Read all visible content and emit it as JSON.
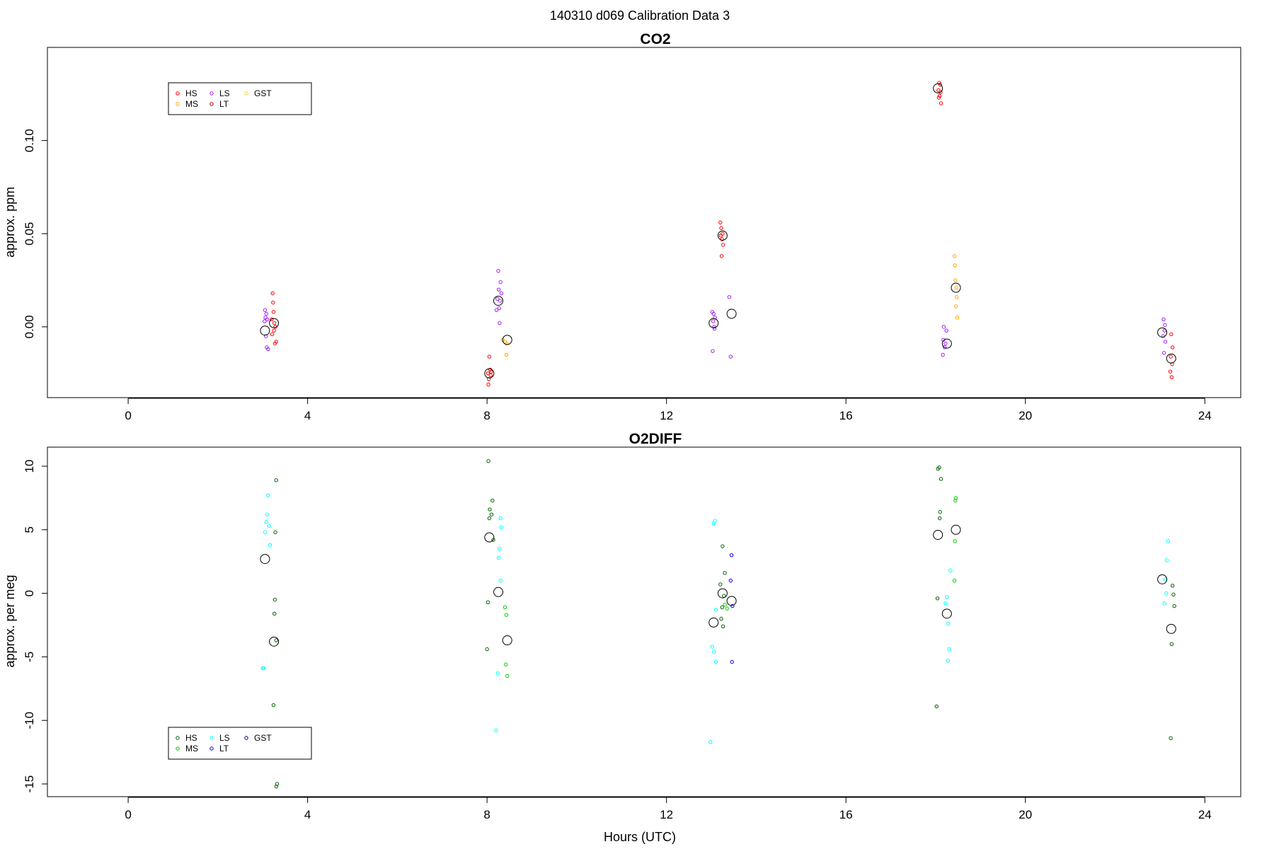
{
  "figure": {
    "title": "140310   d069   Calibration Data 3"
  },
  "chart_data": [
    {
      "type": "scatter",
      "title": "CO2",
      "xlabel": "",
      "ylabel": "approx. ppm",
      "xlim": [
        -1.8,
        24.8
      ],
      "ylim": [
        -0.038,
        0.15
      ],
      "xticks": [
        0,
        4,
        8,
        12,
        16,
        20,
        24
      ],
      "yticks": [
        0.0,
        0.05,
        0.1
      ],
      "ytick_labels": [
        "0.00",
        "0.05",
        "0.10"
      ],
      "legend": {
        "placement": "top-left",
        "entries": [
          {
            "name": "HS",
            "color": "#ff0000"
          },
          {
            "name": "MS",
            "color": "#ffa500"
          },
          {
            "name": "LS",
            "color": "#a020f0"
          },
          {
            "name": "LT",
            "color": "#cd0000"
          },
          {
            "name": "GST",
            "color": "#ffd700"
          }
        ]
      },
      "series": [
        {
          "name": "HS",
          "color": "#ff0000",
          "points": [
            [
              3.22,
              0.018
            ],
            [
              3.23,
              0.013
            ],
            [
              3.24,
              0.008
            ],
            [
              3.2,
              0.004
            ],
            [
              3.26,
              0.002
            ],
            [
              3.28,
              0.0
            ],
            [
              3.25,
              -0.002
            ],
            [
              3.21,
              -0.004
            ],
            [
              3.3,
              -0.008
            ],
            [
              3.27,
              -0.009
            ],
            [
              8.05,
              -0.016
            ],
            [
              8.07,
              -0.023
            ],
            [
              8.09,
              -0.024
            ],
            [
              8.02,
              -0.025
            ],
            [
              8.08,
              -0.026
            ],
            [
              8.04,
              -0.028
            ],
            [
              8.03,
              -0.031
            ],
            [
              13.2,
              0.056
            ],
            [
              13.22,
              0.053
            ],
            [
              13.25,
              0.05
            ],
            [
              13.21,
              0.049
            ],
            [
              13.24,
              0.047
            ],
            [
              13.26,
              0.044
            ],
            [
              13.23,
              0.038
            ],
            [
              18.08,
              0.131
            ],
            [
              18.1,
              0.13
            ],
            [
              18.06,
              0.127
            ],
            [
              18.11,
              0.126
            ],
            [
              18.09,
              0.124
            ],
            [
              18.07,
              0.123
            ],
            [
              18.12,
              0.12
            ],
            [
              23.25,
              -0.004
            ],
            [
              23.28,
              -0.011
            ],
            [
              23.24,
              -0.016
            ],
            [
              23.27,
              -0.02
            ],
            [
              23.23,
              -0.024
            ],
            [
              23.26,
              -0.027
            ]
          ]
        },
        {
          "name": "MS",
          "color": "#ffa500",
          "points": [
            [
              8.35,
              -0.007
            ],
            [
              8.4,
              -0.008
            ],
            [
              8.44,
              -0.009
            ],
            [
              8.43,
              -0.015
            ],
            [
              18.42,
              0.038
            ],
            [
              18.43,
              0.033
            ],
            [
              18.44,
              0.025
            ],
            [
              18.46,
              0.021
            ],
            [
              18.47,
              0.016
            ],
            [
              18.45,
              0.011
            ],
            [
              18.48,
              0.005
            ]
          ]
        },
        {
          "name": "LS",
          "color": "#a020f0",
          "points": [
            [
              3.05,
              0.009
            ],
            [
              3.08,
              0.007
            ],
            [
              3.06,
              0.005
            ],
            [
              3.1,
              0.004
            ],
            [
              3.04,
              0.003
            ],
            [
              3.07,
              -0.005
            ],
            [
              3.09,
              -0.011
            ],
            [
              3.12,
              -0.012
            ],
            [
              8.25,
              0.03
            ],
            [
              8.3,
              0.024
            ],
            [
              8.26,
              0.02
            ],
            [
              8.32,
              0.018
            ],
            [
              8.23,
              0.015
            ],
            [
              8.29,
              0.014
            ],
            [
              8.27,
              0.01
            ],
            [
              8.21,
              0.009
            ],
            [
              8.28,
              0.002
            ],
            [
              13.02,
              0.008
            ],
            [
              13.05,
              0.007
            ],
            [
              13.08,
              0.005
            ],
            [
              13.04,
              0.003
            ],
            [
              13.06,
              0.0
            ],
            [
              13.07,
              -0.001
            ],
            [
              13.03,
              -0.013
            ],
            [
              13.4,
              0.016
            ],
            [
              13.43,
              -0.016
            ],
            [
              18.18,
              0.0
            ],
            [
              18.24,
              -0.002
            ],
            [
              18.17,
              -0.007
            ],
            [
              18.22,
              -0.009
            ],
            [
              18.2,
              -0.011
            ],
            [
              18.16,
              -0.015
            ],
            [
              23.08,
              0.004
            ],
            [
              23.11,
              0.001
            ],
            [
              23.1,
              -0.002
            ],
            [
              23.07,
              -0.005
            ],
            [
              23.12,
              -0.008
            ],
            [
              23.09,
              -0.014
            ]
          ]
        }
      ],
      "means": [
        [
          3.05,
          -0.002
        ],
        [
          3.25,
          0.002
        ],
        [
          8.05,
          -0.025
        ],
        [
          8.25,
          0.014
        ],
        [
          8.45,
          -0.007
        ],
        [
          13.05,
          0.002
        ],
        [
          13.25,
          0.049
        ],
        [
          13.45,
          0.007
        ],
        [
          18.05,
          0.128
        ],
        [
          18.25,
          -0.009
        ],
        [
          18.45,
          0.021
        ],
        [
          23.05,
          -0.003
        ],
        [
          23.25,
          -0.017
        ]
      ]
    },
    {
      "type": "scatter",
      "title": "O2DIFF",
      "xlabel": "Hours (UTC)",
      "ylabel": "approx. per meg",
      "xlim": [
        -1.8,
        24.8
      ],
      "ylim": [
        -16.0,
        11.5
      ],
      "xticks": [
        0,
        4,
        8,
        12,
        16,
        20,
        24
      ],
      "yticks": [
        -15,
        -10,
        -5,
        0,
        5,
        10
      ],
      "ytick_labels": [
        "-15",
        "-10",
        "-5",
        "0",
        "5",
        "10"
      ],
      "legend": {
        "placement": "bottom-left",
        "entries": [
          {
            "name": "HS",
            "color": "#006400"
          },
          {
            "name": "MS",
            "color": "#00cd00"
          },
          {
            "name": "LS",
            "color": "#00ffff"
          },
          {
            "name": "LT",
            "color": "#0000ff"
          },
          {
            "name": "GST",
            "color": "#00008b"
          }
        ]
      },
      "series": [
        {
          "name": "HS",
          "color": "#006400",
          "points": [
            [
              3.3,
              8.9
            ],
            [
              3.28,
              4.8
            ],
            [
              3.27,
              -0.5
            ],
            [
              3.26,
              -1.6
            ],
            [
              3.3,
              -3.7
            ],
            [
              3.24,
              -8.8
            ],
            [
              3.32,
              -15.0
            ],
            [
              3.3,
              -15.2
            ],
            [
              8.03,
              10.4
            ],
            [
              8.12,
              7.3
            ],
            [
              8.06,
              6.6
            ],
            [
              8.1,
              6.2
            ],
            [
              8.05,
              5.9
            ],
            [
              8.14,
              4.2
            ],
            [
              8.02,
              -0.7
            ],
            [
              8.0,
              -4.4
            ],
            [
              13.25,
              3.7
            ],
            [
              13.3,
              1.6
            ],
            [
              13.2,
              0.7
            ],
            [
              13.28,
              -0.2
            ],
            [
              13.24,
              -1.1
            ],
            [
              13.22,
              -2.0
            ],
            [
              13.26,
              -2.6
            ],
            [
              18.05,
              9.8
            ],
            [
              18.08,
              9.9
            ],
            [
              18.12,
              9.0
            ],
            [
              18.1,
              6.4
            ],
            [
              18.09,
              5.9
            ],
            [
              18.04,
              -0.4
            ],
            [
              18.02,
              -8.9
            ],
            [
              23.28,
              0.6
            ],
            [
              23.3,
              -0.1
            ],
            [
              23.32,
              -1.0
            ],
            [
              23.26,
              -4.0
            ],
            [
              23.24,
              -11.4
            ]
          ]
        },
        {
          "name": "MS",
          "color": "#00cd00",
          "points": [
            [
              8.4,
              -1.1
            ],
            [
              8.43,
              -1.7
            ],
            [
              8.42,
              -5.6
            ],
            [
              8.45,
              -6.5
            ],
            [
              13.3,
              -0.9
            ],
            [
              13.35,
              -1.2
            ],
            [
              18.45,
              7.5
            ],
            [
              18.44,
              7.3
            ],
            [
              18.43,
              4.1
            ],
            [
              18.42,
              1.0
            ]
          ]
        },
        {
          "name": "LS",
          "color": "#00ffff",
          "points": [
            [
              3.12,
              7.7
            ],
            [
              3.1,
              6.2
            ],
            [
              3.08,
              5.6
            ],
            [
              3.14,
              5.3
            ],
            [
              3.05,
              4.8
            ],
            [
              3.16,
              3.8
            ],
            [
              3.02,
              -5.9
            ],
            [
              3.0,
              -5.9
            ],
            [
              8.3,
              5.9
            ],
            [
              8.32,
              5.2
            ],
            [
              8.28,
              3.5
            ],
            [
              8.26,
              2.8
            ],
            [
              8.3,
              1.0
            ],
            [
              8.24,
              -6.3
            ],
            [
              8.2,
              -10.8
            ],
            [
              13.05,
              5.5
            ],
            [
              13.08,
              5.7
            ],
            [
              13.1,
              -1.3
            ],
            [
              13.02,
              -4.2
            ],
            [
              13.06,
              -4.6
            ],
            [
              13.1,
              -5.4
            ],
            [
              12.98,
              -11.7
            ],
            [
              18.33,
              1.8
            ],
            [
              18.25,
              -0.3
            ],
            [
              18.22,
              -0.8
            ],
            [
              18.28,
              -2.4
            ],
            [
              18.3,
              -4.4
            ],
            [
              18.27,
              -5.3
            ],
            [
              23.18,
              4.1
            ],
            [
              23.15,
              2.6
            ],
            [
              23.12,
              1.1
            ],
            [
              23.14,
              0.0
            ],
            [
              23.1,
              -0.8
            ]
          ]
        },
        {
          "name": "LT",
          "color": "#0000ff",
          "points": [
            [
              13.45,
              3.0
            ],
            [
              13.43,
              1.0
            ],
            [
              13.47,
              -1.0
            ],
            [
              13.46,
              -5.4
            ]
          ]
        }
      ],
      "means": [
        [
          3.05,
          2.7
        ],
        [
          3.25,
          -3.8
        ],
        [
          8.05,
          4.4
        ],
        [
          8.25,
          0.1
        ],
        [
          8.45,
          -3.7
        ],
        [
          13.05,
          -2.3
        ],
        [
          13.25,
          0.0
        ],
        [
          13.45,
          -0.6
        ],
        [
          18.05,
          4.6
        ],
        [
          18.25,
          -1.6
        ],
        [
          18.45,
          5.0
        ],
        [
          23.05,
          1.1
        ],
        [
          23.25,
          -2.8
        ]
      ]
    }
  ]
}
